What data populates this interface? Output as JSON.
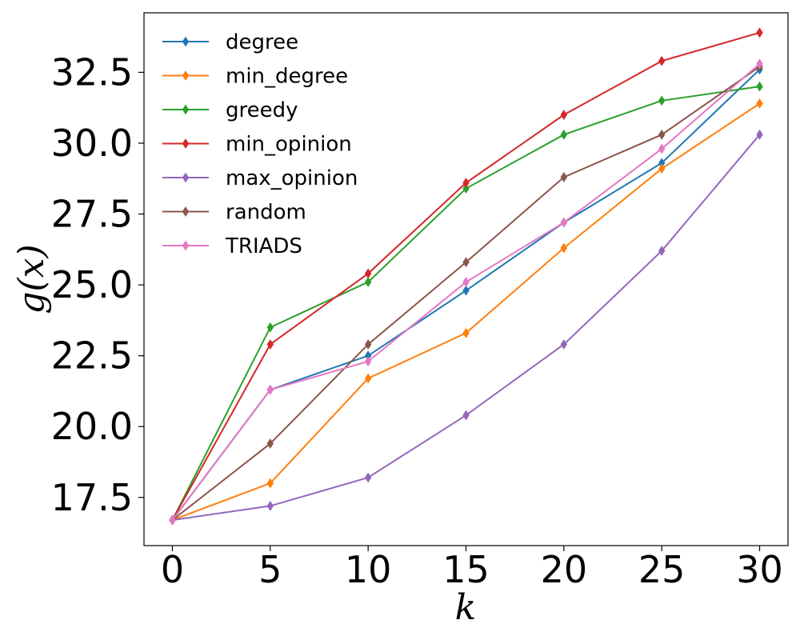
{
  "chart_data": {
    "type": "line",
    "xlabel": "k",
    "ylabel": "g(x)",
    "x": [
      0,
      5,
      10,
      15,
      20,
      25,
      30
    ],
    "xticks": [
      "0",
      "5",
      "10",
      "15",
      "20",
      "25",
      "30"
    ],
    "yticks": [
      "17.5",
      "20.0",
      "22.5",
      "25.0",
      "27.5",
      "30.0",
      "32.5"
    ],
    "xlim": [
      -1.45,
      31.45
    ],
    "ylim": [
      15.8,
      34.6
    ],
    "grid": false,
    "legend": "top-left",
    "marker": "thin-diamond",
    "series": [
      {
        "name": "degree",
        "color": "#1f77b4",
        "values": [
          16.7,
          21.3,
          22.5,
          24.8,
          27.2,
          29.3,
          32.6
        ]
      },
      {
        "name": "min_degree",
        "color": "#ff7f0e",
        "values": [
          16.7,
          18.0,
          21.7,
          23.3,
          26.3,
          29.1,
          31.4
        ]
      },
      {
        "name": "greedy",
        "color": "#2ca02c",
        "values": [
          16.7,
          23.5,
          25.1,
          28.4,
          30.3,
          31.5,
          32.0
        ]
      },
      {
        "name": "min_opinion",
        "color": "#d62728",
        "values": [
          16.7,
          22.9,
          25.4,
          28.6,
          31.0,
          32.9,
          33.9
        ]
      },
      {
        "name": "max_opinion",
        "color": "#9467bd",
        "values": [
          16.7,
          17.2,
          18.2,
          20.4,
          22.9,
          26.2,
          30.3
        ]
      },
      {
        "name": "random",
        "color": "#8c564b",
        "values": [
          16.7,
          19.4,
          22.9,
          25.8,
          28.8,
          30.3,
          32.7
        ]
      },
      {
        "name": "TRIADS",
        "color": "#e377c2",
        "values": [
          16.7,
          21.3,
          22.3,
          25.1,
          27.2,
          29.8,
          32.8
        ]
      }
    ]
  }
}
